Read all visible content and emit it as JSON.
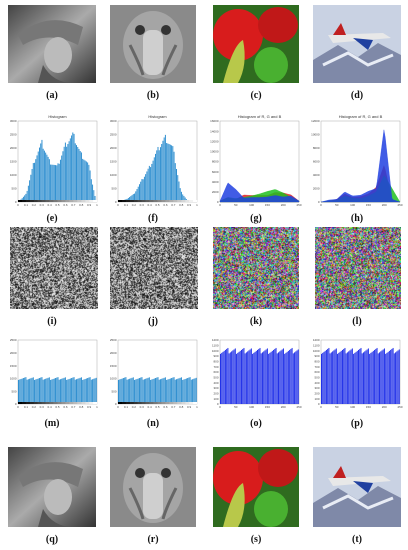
{
  "captions": {
    "a": "(a)",
    "b": "(b)",
    "c": "(c)",
    "d": "(d)",
    "e": "(e)",
    "f": "(f)",
    "g": "(g)",
    "h": "(h)",
    "i": "(i)",
    "j": "(j)",
    "k": "(k)",
    "l": "(l)",
    "m": "(m)",
    "n": "(n)",
    "o": "(o)",
    "p": "(p)",
    "q": "(q)",
    "r": "(r)",
    "s": "(s)",
    "t": "(t)"
  },
  "hist_titles": {
    "e": "Histogram",
    "f": "Histogram",
    "g": "Histogram of R, G and B",
    "h": "Histogram of R, G and B"
  },
  "chart_data": [
    {
      "id": "e",
      "type": "bar",
      "title": "Histogram",
      "x": [
        0,
        0.1,
        0.2,
        0.3,
        0.4,
        0.5,
        0.6,
        0.7,
        0.8,
        0.9,
        1
      ],
      "values": [
        0,
        300,
        1500,
        2200,
        1500,
        1300,
        2100,
        2500,
        1800,
        1400,
        0
      ],
      "ylim": [
        0,
        3000
      ],
      "y_ticks": [
        0,
        500,
        1000,
        1500,
        2000,
        2500,
        3000
      ],
      "x_ticks": [
        "0",
        "0.1",
        "0.2",
        "0.3",
        "0.4",
        "0.5",
        "0.6",
        "0.7",
        "0.8",
        "0.9",
        "1"
      ],
      "color": "#2f8fd0"
    },
    {
      "id": "f",
      "type": "bar",
      "title": "Histogram",
      "x": [
        0,
        0.1,
        0.2,
        0.3,
        0.4,
        0.5,
        0.6,
        0.7,
        0.8,
        0.9,
        1
      ],
      "values": [
        0,
        100,
        300,
        800,
        1300,
        1900,
        2400,
        2000,
        400,
        0,
        0
      ],
      "ylim": [
        0,
        3000
      ],
      "y_ticks": [
        0,
        500,
        1000,
        1500,
        2000,
        2500,
        3000
      ],
      "x_ticks": [
        "0",
        "0.1",
        "0.2",
        "0.3",
        "0.4",
        "0.5",
        "0.6",
        "0.7",
        "0.8",
        "0.9",
        "1"
      ],
      "color": "#2f8fd0"
    },
    {
      "id": "g",
      "type": "line",
      "title": "Histogram of R, G and B",
      "x": [
        0,
        25,
        50,
        75,
        100,
        125,
        150,
        175,
        200,
        225,
        250
      ],
      "series": [
        {
          "color": "#e02020",
          "values": [
            200,
            900,
            500,
            1400,
            1300,
            1300,
            1300,
            1900,
            1800,
            1400,
            200
          ]
        },
        {
          "color": "#20c020",
          "values": [
            200,
            900,
            700,
            900,
            1200,
            1600,
            2100,
            2500,
            1800,
            900,
            200
          ]
        },
        {
          "color": "#2040e0",
          "values": [
            200,
            3800,
            2500,
            800,
            900,
            900,
            1000,
            1300,
            1000,
            1200,
            200
          ]
        }
      ],
      "ylim": [
        0,
        16000
      ],
      "y_ticks": [
        0,
        2000,
        4000,
        6000,
        8000,
        10000,
        12000,
        14000,
        16000
      ],
      "x_ticks": [
        "0",
        "50",
        "100",
        "150",
        "200",
        "250"
      ]
    },
    {
      "id": "h",
      "type": "line",
      "title": "Histogram of R, G and B",
      "x": [
        0,
        25,
        50,
        75,
        100,
        125,
        150,
        175,
        200,
        225,
        250
      ],
      "series": [
        {
          "color": "#e02020",
          "values": [
            0,
            100,
            400,
            1200,
            700,
            800,
            1200,
            2200,
            5500,
            300,
            0
          ]
        },
        {
          "color": "#20c020",
          "values": [
            0,
            200,
            300,
            900,
            600,
            500,
            900,
            1500,
            4000,
            2000,
            0
          ]
        },
        {
          "color": "#2040e0",
          "values": [
            0,
            300,
            400,
            1500,
            900,
            1000,
            1600,
            2000,
            11000,
            400,
            0
          ]
        }
      ],
      "ylim": [
        0,
        12000
      ],
      "y_ticks": [
        0,
        2000,
        4000,
        6000,
        8000,
        10000,
        12000
      ],
      "x_ticks": [
        "0",
        "50",
        "100",
        "150",
        "200",
        "250"
      ]
    },
    {
      "id": "m",
      "type": "bar",
      "title": "",
      "x": [
        0,
        0.1,
        0.2,
        0.3,
        0.4,
        0.5,
        0.6,
        0.7,
        0.8,
        0.9,
        1
      ],
      "values": [
        1000,
        1000,
        1000,
        1000,
        1000,
        1000,
        1000,
        1000,
        1000,
        1000,
        1000
      ],
      "ylim": [
        0,
        2500
      ],
      "y_ticks": [
        0,
        500,
        1000,
        1500,
        2000,
        2500
      ],
      "x_ticks": [
        "0",
        "0.1",
        "0.2",
        "0.3",
        "0.4",
        "0.5",
        "0.6",
        "0.7",
        "0.8",
        "0.9",
        "1"
      ],
      "color": "#2f8fd0"
    },
    {
      "id": "n",
      "type": "bar",
      "title": "",
      "x": [
        0,
        0.1,
        0.2,
        0.3,
        0.4,
        0.5,
        0.6,
        0.7,
        0.8,
        0.9,
        1
      ],
      "values": [
        1000,
        1000,
        1000,
        1000,
        1000,
        1000,
        1000,
        1000,
        1000,
        1000,
        1000
      ],
      "ylim": [
        0,
        2500
      ],
      "y_ticks": [
        0,
        500,
        1000,
        1500,
        2000,
        2500
      ],
      "x_ticks": [
        "0",
        "0.1",
        "0.2",
        "0.3",
        "0.4",
        "0.5",
        "0.6",
        "0.7",
        "0.8",
        "0.9",
        "1"
      ],
      "color": "#2f8fd0"
    },
    {
      "id": "o",
      "type": "bar",
      "title": "",
      "x": [
        0,
        50,
        100,
        150,
        200,
        250
      ],
      "values": [
        1000,
        1000,
        1000,
        1000,
        1000,
        1000
      ],
      "ylim": [
        0,
        1200
      ],
      "y_ticks": [
        0,
        100,
        200,
        300,
        400,
        500,
        600,
        700,
        800,
        900,
        1000,
        1100,
        1200
      ],
      "x_ticks": [
        "0",
        "50",
        "100",
        "150",
        "200",
        "250"
      ],
      "color": "#2030e8"
    },
    {
      "id": "p",
      "type": "bar",
      "title": "",
      "x": [
        0,
        50,
        100,
        150,
        200,
        250
      ],
      "values": [
        1000,
        1000,
        1000,
        1000,
        1000,
        1000
      ],
      "ylim": [
        0,
        1200
      ],
      "y_ticks": [
        0,
        100,
        200,
        300,
        400,
        500,
        600,
        700,
        800,
        900,
        1000,
        1100,
        1200
      ],
      "x_ticks": [
        "0",
        "50",
        "100",
        "150",
        "200",
        "250"
      ],
      "color": "#2030e8"
    }
  ]
}
